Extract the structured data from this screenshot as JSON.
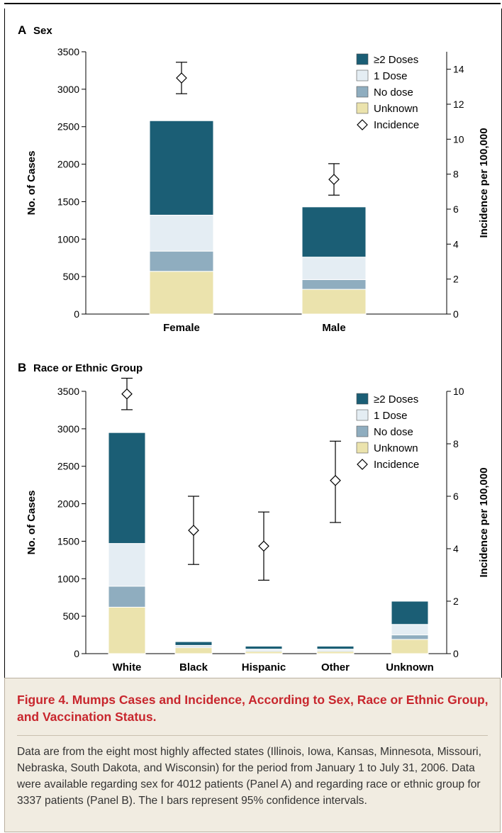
{
  "colors": {
    "two_doses": "#1b5e75",
    "one_dose": "#e4edf3",
    "no_dose": "#8fadbf",
    "unknown": "#ebe3ad",
    "caption_title": "#c8262d",
    "caption_bg": "#f1ece1"
  },
  "icons": {
    "incidence_marker": "diamond-icon"
  },
  "chart_data": [
    {
      "type": "bar",
      "panel_letter": "A",
      "title": "Sex",
      "categories": [
        "Female",
        "Male"
      ],
      "ylabel": "No. of Cases",
      "ylim": [
        0,
        3500
      ],
      "yticks": [
        "0",
        "500",
        "1000",
        "1500",
        "2000",
        "2500",
        "3000",
        "3500"
      ],
      "y2label": "Incidence per 100,000",
      "y2lim": [
        0,
        15
      ],
      "y2ticks": [
        "0",
        "2",
        "4",
        "6",
        "8",
        "10",
        "12",
        "14"
      ],
      "stacked": true,
      "series": [
        {
          "name": "Unknown",
          "values": [
            570,
            330
          ]
        },
        {
          "name": "No dose",
          "values": [
            270,
            130
          ]
        },
        {
          "name": "1 Dose",
          "values": [
            480,
            300
          ]
        },
        {
          "name": "≥2 Doses",
          "values": [
            1260,
            670
          ]
        }
      ],
      "incidence": {
        "name": "Incidence",
        "values": [
          13.5,
          7.7
        ],
        "ci_low": [
          12.6,
          6.8
        ],
        "ci_high": [
          14.4,
          8.6
        ]
      },
      "legend_order": [
        "≥2 Doses",
        "1 Dose",
        "No dose",
        "Unknown",
        "Incidence"
      ],
      "legend_position": "top-right"
    },
    {
      "type": "bar",
      "panel_letter": "B",
      "title": "Race or Ethnic Group",
      "categories": [
        "White",
        "Black",
        "Hispanic",
        "Other",
        "Unknown"
      ],
      "ylabel": "No. of Cases",
      "ylim": [
        0,
        3500
      ],
      "yticks": [
        "0",
        "500",
        "1000",
        "1500",
        "2000",
        "2500",
        "3000",
        "3500"
      ],
      "y2label": "Incidence per 100,000",
      "y2lim": [
        0,
        10
      ],
      "y2ticks": [
        "0",
        "2",
        "4",
        "6",
        "8",
        "10"
      ],
      "stacked": true,
      "series": [
        {
          "name": "Unknown",
          "values": [
            620,
            80,
            30,
            30,
            190
          ]
        },
        {
          "name": "No dose",
          "values": [
            280,
            15,
            15,
            15,
            60
          ]
        },
        {
          "name": "1 Dose",
          "values": [
            570,
            15,
            15,
            15,
            140
          ]
        },
        {
          "name": "≥2 Doses",
          "values": [
            1480,
            50,
            40,
            40,
            310
          ]
        }
      ],
      "incidence": {
        "name": "Incidence",
        "values": [
          9.9,
          4.7,
          4.1,
          6.6,
          null
        ],
        "ci_low": [
          9.3,
          3.4,
          2.8,
          5.0,
          null
        ],
        "ci_high": [
          10.5,
          6.0,
          5.4,
          8.1,
          null
        ]
      },
      "legend_order": [
        "≥2 Doses",
        "1 Dose",
        "No dose",
        "Unknown",
        "Incidence"
      ],
      "legend_position": "top-right"
    }
  ],
  "caption": {
    "title": "Figure 4. Mumps Cases and Incidence, According to Sex, Race or Ethnic Group, and Vaccination Status.",
    "body": "Data are from the eight most highly affected states (Illinois, Iowa, Kansas, Minnesota, Missouri, Nebraska, South Dakota, and Wisconsin) for the period from January 1 to July 31, 2006. Data were available regarding sex for 4012 patients (Panel A) and regarding race or ethnic group for 3337 patients (Panel B). The I bars represent 95% confidence intervals."
  }
}
